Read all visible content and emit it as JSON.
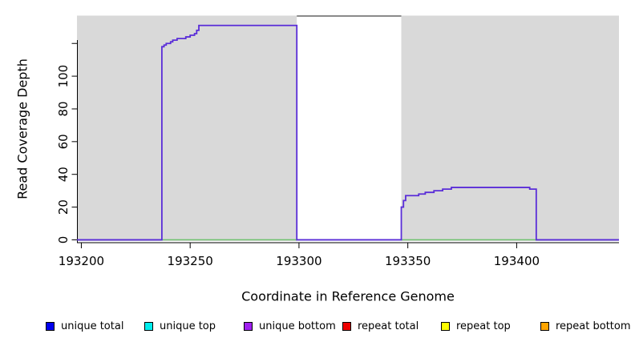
{
  "chart_data": {
    "type": "line",
    "title": "",
    "xlabel": "Coordinate in Reference Genome",
    "ylabel": "Read Coverage Depth",
    "xlim": [
      193198,
      193447
    ],
    "ylim": [
      -1.5,
      137
    ],
    "grid": false,
    "legend_position": "bottom",
    "x_ticks": [
      {
        "value": 193200,
        "label": "193200"
      },
      {
        "value": 193250,
        "label": "193250"
      },
      {
        "value": 193300,
        "label": "193300"
      },
      {
        "value": 193350,
        "label": "193350"
      },
      {
        "value": 193400,
        "label": "193400"
      }
    ],
    "y_ticks": [
      {
        "value": 0,
        "label": "0"
      },
      {
        "value": 20,
        "label": "20"
      },
      {
        "value": 40,
        "label": "40"
      },
      {
        "value": 60,
        "label": "60"
      },
      {
        "value": 80,
        "label": "80"
      },
      {
        "value": 100,
        "label": "100"
      },
      {
        "value": 120,
        "label": ""
      }
    ],
    "background_regions": [
      {
        "name": "aligned-region-left",
        "x0": 193198,
        "x1": 193299,
        "color": "#d9d9d9"
      },
      {
        "name": "gap-region",
        "x0": 193299,
        "x1": 193347,
        "color": "#ffffff",
        "top_border": "#8a8a8a"
      },
      {
        "name": "aligned-region-right",
        "x0": 193347,
        "x1": 193447,
        "color": "#d9d9d9"
      }
    ],
    "series": [
      {
        "name": "zero-baseline-overlap",
        "type": "line",
        "color": "#6fc26f",
        "points": [
          [
            193198,
            0
          ],
          [
            193447,
            0
          ]
        ]
      },
      {
        "name": "unique-coverage-step",
        "type": "step",
        "color": "#5a2dd8",
        "points": [
          [
            193198,
            0
          ],
          [
            193237,
            118
          ],
          [
            193238,
            119
          ],
          [
            193239,
            120
          ],
          [
            193241,
            121
          ],
          [
            193242,
            122
          ],
          [
            193244,
            123
          ],
          [
            193248,
            124
          ],
          [
            193250,
            125
          ],
          [
            193252,
            126
          ],
          [
            193253,
            128
          ],
          [
            193254,
            131
          ],
          [
            193299,
            0
          ],
          [
            193347,
            20
          ],
          [
            193348,
            24
          ],
          [
            193349,
            27
          ],
          [
            193355,
            28
          ],
          [
            193358,
            29
          ],
          [
            193362,
            30
          ],
          [
            193366,
            31
          ],
          [
            193370,
            32
          ],
          [
            193406,
            31
          ],
          [
            193409,
            0
          ],
          [
            193447,
            0
          ]
        ]
      }
    ],
    "legend": [
      {
        "label": "unique total",
        "color": "#0000ee"
      },
      {
        "label": "unique top",
        "color": "#00eeee"
      },
      {
        "label": "unique bottom",
        "color": "#a020f0"
      },
      {
        "label": "repeat total",
        "color": "#ee0000"
      },
      {
        "label": "repeat top",
        "color": "#ffff00"
      },
      {
        "label": "repeat bottom",
        "color": "#ffa500"
      }
    ]
  }
}
